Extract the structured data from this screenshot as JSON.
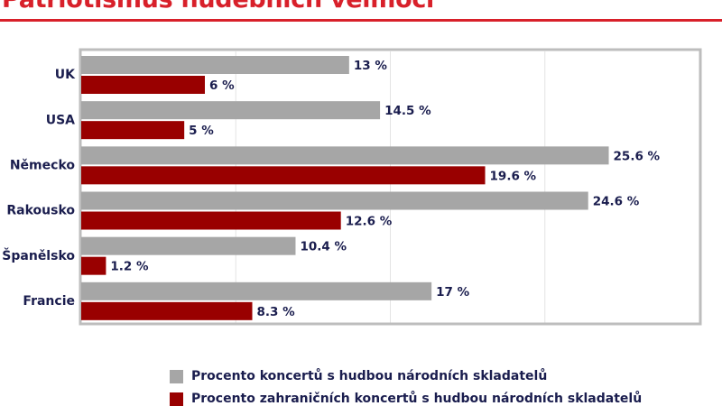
{
  "title": "Patriotismus hudebních velmocí",
  "chart_data": {
    "type": "bar",
    "orientation": "horizontal",
    "categories": [
      "UK",
      "USA",
      "Německo",
      "Rakousko",
      "Španělsko",
      "Francie"
    ],
    "series": [
      {
        "name": "Procento koncertů s hudbou národních skladatelů",
        "color": "#a6a6a6",
        "values": [
          13,
          14.5,
          25.6,
          24.6,
          10.4,
          17
        ],
        "labels": [
          "13 %",
          "14.5 %",
          "25.6 %",
          "24.6 %",
          "10.4 %",
          "17 %"
        ]
      },
      {
        "name": "Procento zahraničních koncertů s hudbou národních skladatelů",
        "color": "#990000",
        "values": [
          6,
          5,
          19.6,
          12.6,
          1.2,
          8.3
        ],
        "labels": [
          "6 %",
          "5 %",
          "19.6 %",
          "12.6 %",
          "1.2 %",
          "8.3 %"
        ]
      }
    ],
    "xlim": [
      0,
      30
    ],
    "gridlines": [
      7.5,
      15,
      22.5
    ],
    "grid": true,
    "legend": "bottom"
  }
}
